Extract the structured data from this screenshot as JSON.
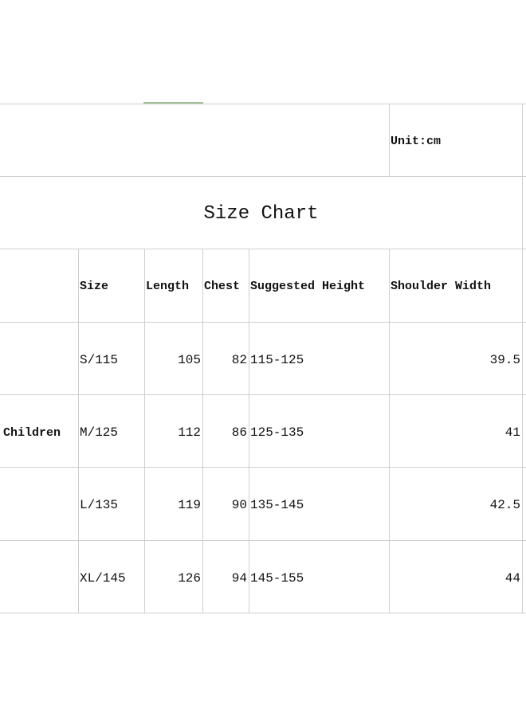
{
  "unit": "Unit:cm",
  "title": "Size Chart",
  "group_label": "Children",
  "columns": [
    "Size",
    "Length",
    "Chest",
    "Suggested Height",
    "Shoulder Width"
  ],
  "rows": [
    [
      "S/115",
      "105",
      "82",
      "115-125",
      "39.5"
    ],
    [
      "M/125",
      "112",
      "86",
      "125-135",
      "41"
    ],
    [
      "L/135",
      "119",
      "90",
      "135-145",
      "42.5"
    ],
    [
      "XL/145",
      "126",
      "94",
      "145-155",
      "44"
    ]
  ]
}
